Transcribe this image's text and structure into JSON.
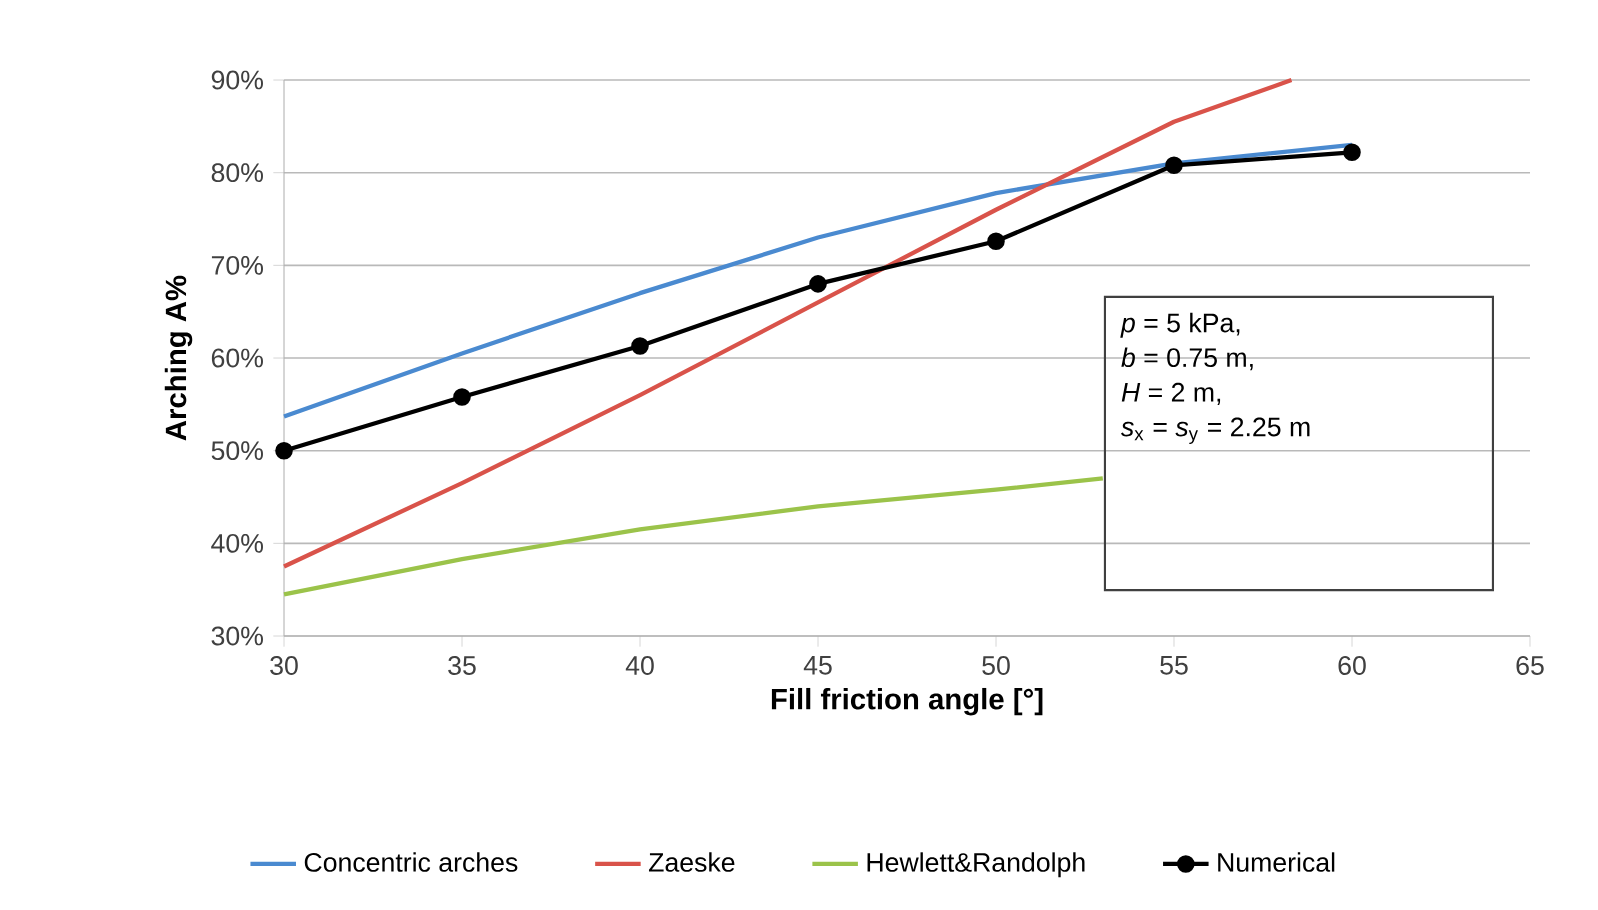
{
  "chart_data": {
    "type": "line",
    "xlabel": "Fill friction angle [°]",
    "ylabel": "Arching A%",
    "xlim": [
      30,
      65
    ],
    "xticks": [
      30,
      35,
      40,
      45,
      50,
      55,
      60,
      65
    ],
    "ylim": [
      30,
      90
    ],
    "yticks": [
      {
        "value": 30,
        "label": "30%"
      },
      {
        "value": 40,
        "label": "40%"
      },
      {
        "value": 50,
        "label": "50%"
      },
      {
        "value": 60,
        "label": "60%"
      },
      {
        "value": 70,
        "label": "70%"
      },
      {
        "value": 80,
        "label": "80%"
      },
      {
        "value": 90,
        "label": "90%"
      }
    ],
    "grid": "y",
    "legend": "bottom",
    "line_style": "solid",
    "series": [
      {
        "name": "Concentric arches",
        "color": "#4a8ad0",
        "marker": "none",
        "x": [
          30,
          35,
          40,
          45,
          50,
          55,
          60
        ],
        "values": [
          53.7,
          60.5,
          67,
          73,
          77.8,
          81,
          83
        ]
      },
      {
        "name": "Zaeske",
        "color": "#d9534a",
        "marker": "none",
        "x": [
          30,
          35,
          40,
          45,
          50,
          55,
          58.3
        ],
        "values": [
          37.5,
          46.5,
          56,
          66,
          76,
          85.5,
          90
        ]
      },
      {
        "name": "Hewlett&Randolph",
        "color": "#9bc34a",
        "marker": "none",
        "x": [
          30,
          35,
          40,
          45,
          50,
          53
        ],
        "values": [
          34.5,
          38.3,
          41.5,
          44,
          45.8,
          47
        ]
      },
      {
        "name": "Numerical",
        "color": "#000000",
        "marker": "circle",
        "x": [
          30,
          35,
          40,
          45,
          50,
          55,
          60
        ],
        "values": [
          50,
          55.8,
          61.3,
          68,
          72.6,
          80.8,
          82.2
        ]
      }
    ],
    "annotations": [
      "*p* = 5 kPa,",
      "*b* = 0.75 m,",
      "*H* = 2 m,",
      "*s*$_{x}$ = *s*$_{y}$ = 2.25 m"
    ]
  }
}
